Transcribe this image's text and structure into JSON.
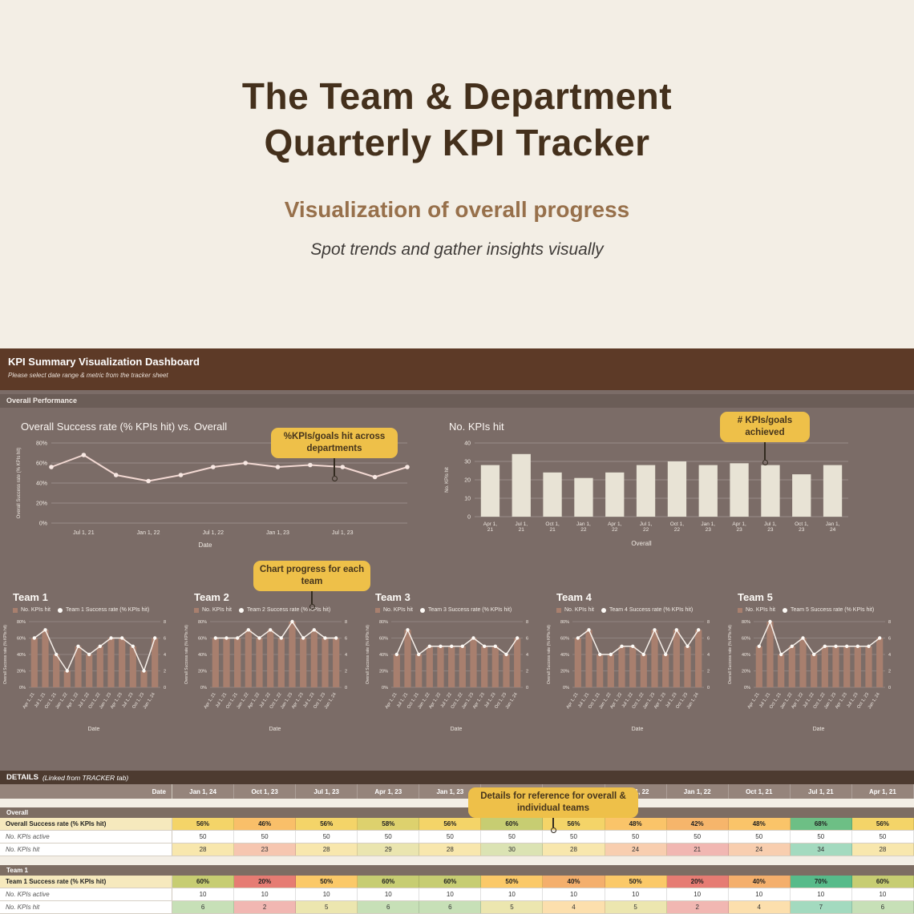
{
  "hero": {
    "title_line1": "The Team & Department",
    "title_line2": "Quarterly KPI Tracker",
    "subtitle": "Visualization of overall progress",
    "tagline": "Spot trends and gather insights visually"
  },
  "dashboard": {
    "title": "KPI Summary Visualization Dashboard",
    "subtitle": "Please select date range & metric from the tracker sheet",
    "section_label": "Overall Performance"
  },
  "callouts": {
    "departments": "%KPIs/goals hit across departments",
    "achieved": "# KPIs/goals achieved",
    "team_progress": "Chart progress for each team",
    "details": "Details for reference for overall & individual teams"
  },
  "colors": {
    "hero_bg": "#f3eee5",
    "title_brown": "#44301c",
    "subtitle_brown": "#97704b",
    "dash_bg": "#7b6c67",
    "dash_header_bg": "#5d3a27",
    "callout_yellow": "#eec049",
    "line_color": "#f3d9d3",
    "bar_fill": "#e8e3d5",
    "team_bar_fill": "#a87f6e",
    "team_line": "#f6efe9",
    "scale_min": "#e67c73",
    "scale_mid": "#ffd666",
    "scale_max": "#57bb8a"
  },
  "chart_data": [
    {
      "type": "line",
      "title": "Overall Success rate (% KPIs hit) vs. Overall",
      "xlabel": "Date",
      "ylabel": "Overall Success rate (% KPIs hit)",
      "x": [
        "Apr 1, 21",
        "Jul 1, 21",
        "Oct 1, 21",
        "Jan 1, 22",
        "Apr 1, 22",
        "Jul 1, 22",
        "Oct 1, 22",
        "Jan 1, 23",
        "Apr 1, 23",
        "Jul 1, 23",
        "Oct 1, 23",
        "Jan 1, 24"
      ],
      "shown_x_ticks": [
        "Jul 1, 21",
        "Jan 1, 22",
        "Jul 1, 22",
        "Jan 1, 23",
        "Jul 1, 23"
      ],
      "values": [
        56,
        68,
        48,
        42,
        48,
        56,
        60,
        56,
        58,
        56,
        46,
        56
      ],
      "ylim": [
        0,
        80
      ],
      "yticks": [
        "0%",
        "20%",
        "40%",
        "60%",
        "80%"
      ],
      "grid": true,
      "legend_position": "none"
    },
    {
      "type": "bar",
      "title": "No. KPIs hit",
      "xlabel": "Overall",
      "ylabel": "No. KPIs hit",
      "categories": [
        "Apr 1, 21",
        "Jul 1, 21",
        "Oct 1, 21",
        "Jan 1, 22",
        "Apr 1, 22",
        "Jul 1, 22",
        "Oct 1, 22",
        "Jan 1, 23",
        "Apr 1, 23",
        "Jul 1, 23",
        "Oct 1, 23",
        "Jan 1, 24"
      ],
      "values": [
        28,
        34,
        24,
        21,
        24,
        28,
        30,
        28,
        29,
        28,
        23,
        28
      ],
      "ylim": [
        0,
        40
      ],
      "yticks": [
        0,
        10,
        20,
        30,
        40
      ],
      "grid": true
    },
    {
      "type": "combo",
      "title": "Team 1",
      "legend": [
        "No. KPIs hit",
        "Team 1 Success rate (% KPIs hit)"
      ],
      "xlabel": "Date",
      "ylabel": "Overall Success rate (% KPIs hit)",
      "categories": [
        "Apr 1, 21",
        "Jul 1, 21",
        "Oct 1, 21",
        "Jan 1, 22",
        "Apr 1, 22",
        "Jul 1, 22",
        "Oct 1, 22",
        "Jan 1, 23",
        "Apr 1, 23",
        "Jul 1, 23",
        "Oct 1, 23",
        "Jan 1, 24"
      ],
      "bars": [
        6,
        7,
        4,
        2,
        5,
        4,
        5,
        6,
        6,
        5,
        2,
        6
      ],
      "line_pct": [
        60,
        70,
        40,
        20,
        50,
        40,
        50,
        60,
        60,
        50,
        20,
        60
      ],
      "ylim_left": [
        0,
        80
      ],
      "ylim_right": [
        0,
        8
      ]
    },
    {
      "type": "combo",
      "title": "Team 2",
      "legend": [
        "No. KPIs hit",
        "Team 2 Success rate (% KPIs hit)"
      ],
      "xlabel": "Date",
      "ylabel": "Overall Success rate (% KPIs hit)",
      "categories": [
        "Apr 1, 21",
        "Jul 1, 21",
        "Oct 1, 21",
        "Jan 1, 22",
        "Apr 1, 22",
        "Jul 1, 22",
        "Oct 1, 22",
        "Jan 1, 23",
        "Apr 1, 23",
        "Jul 1, 23",
        "Oct 1, 23",
        "Jan 1, 24"
      ],
      "bars": [
        6,
        6,
        6,
        7,
        6,
        7,
        6,
        8,
        6,
        7,
        6,
        6
      ],
      "line_pct": [
        60,
        60,
        60,
        70,
        60,
        70,
        60,
        80,
        60,
        70,
        60,
        60
      ],
      "ylim_left": [
        0,
        80
      ],
      "ylim_right": [
        0,
        8
      ]
    },
    {
      "type": "combo",
      "title": "Team 3",
      "legend": [
        "No. KPIs hit",
        "Team 3 Success rate (% KPIs hit)"
      ],
      "xlabel": "Date",
      "ylabel": "Overall Success rate (% KPIs hit)",
      "categories": [
        "Apr 1, 21",
        "Jul 1, 21",
        "Oct 1, 21",
        "Jan 1, 22",
        "Apr 1, 22",
        "Jul 1, 22",
        "Oct 1, 22",
        "Jan 1, 23",
        "Apr 1, 23",
        "Jul 1, 23",
        "Oct 1, 23",
        "Jan 1, 24"
      ],
      "bars": [
        4,
        7,
        4,
        5,
        5,
        5,
        5,
        6,
        5,
        5,
        4,
        6
      ],
      "line_pct": [
        40,
        70,
        40,
        50,
        50,
        50,
        50,
        60,
        50,
        50,
        40,
        60
      ],
      "ylim_left": [
        0,
        80
      ],
      "ylim_right": [
        0,
        8
      ]
    },
    {
      "type": "combo",
      "title": "Team 4",
      "legend": [
        "No. KPIs hit",
        "Team 4 Success rate (% KPIs hit)"
      ],
      "xlabel": "Date",
      "ylabel": "Overall Success rate (% KPIs hit)",
      "categories": [
        "Apr 1, 21",
        "Jul 1, 21",
        "Oct 1, 21",
        "Jan 1, 22",
        "Apr 1, 22",
        "Jul 1, 22",
        "Oct 1, 22",
        "Jan 1, 23",
        "Apr 1, 23",
        "Jul 1, 23",
        "Oct 1, 23",
        "Jan 1, 24"
      ],
      "bars": [
        6,
        7,
        4,
        4,
        5,
        5,
        4,
        7,
        4,
        7,
        5,
        7
      ],
      "line_pct": [
        60,
        70,
        40,
        40,
        50,
        50,
        40,
        70,
        40,
        70,
        50,
        70
      ],
      "ylim_left": [
        0,
        80
      ],
      "ylim_right": [
        0,
        8
      ]
    },
    {
      "type": "combo",
      "title": "Team 5",
      "legend": [
        "No. KPIs hit",
        "Team 5 Success rate (% KPIs hit)"
      ],
      "xlabel": "Date",
      "ylabel": "Overall Success rate (% KPIs hit)",
      "categories": [
        "Apr 1, 21",
        "Jul 1, 21",
        "Oct 1, 21",
        "Jan 1, 22",
        "Apr 1, 22",
        "Jul 1, 22",
        "Oct 1, 22",
        "Jan 1, 23",
        "Apr 1, 23",
        "Jul 1, 23",
        "Oct 1, 23",
        "Jan 1, 24"
      ],
      "bars": [
        5,
        8,
        4,
        5,
        6,
        4,
        5,
        5,
        5,
        5,
        5,
        6
      ],
      "line_pct": [
        50,
        80,
        40,
        50,
        60,
        40,
        50,
        50,
        50,
        50,
        50,
        60
      ],
      "ylim_left": [
        0,
        80
      ],
      "ylim_right": [
        0,
        8
      ]
    }
  ],
  "details": {
    "title": "DETAILS",
    "title_suffix": "(Linked from TRACKER tab)",
    "date_label": "Date",
    "dates": [
      "Jan 1, 24",
      "Oct 1, 23",
      "Jul 1, 23",
      "Apr 1, 23",
      "Jan 1, 23",
      "Oct 1, 22",
      "Jul 1, 22",
      "Apr 1, 22",
      "Jan 1, 22",
      "Oct 1, 21",
      "Jul 1, 21",
      "Apr 1, 21"
    ],
    "sections": [
      {
        "label": "Overall",
        "rows": [
          {
            "label": "Overall Success rate (% KPIs hit)",
            "scale": "rate",
            "values": [
              "56%",
              "46%",
              "56%",
              "58%",
              "56%",
              "60%",
              "56%",
              "48%",
              "42%",
              "48%",
              "68%",
              "56%"
            ]
          },
          {
            "label": "No. KPIs active",
            "scale": "plain",
            "values": [
              50,
              50,
              50,
              50,
              50,
              50,
              50,
              50,
              50,
              50,
              50,
              50
            ]
          },
          {
            "label": "No. KPIs hit",
            "scale": "tint",
            "values": [
              28,
              23,
              28,
              29,
              28,
              30,
              28,
              24,
              21,
              24,
              34,
              28
            ]
          }
        ]
      },
      {
        "label": "Team 1",
        "rows": [
          {
            "label": "Team 1 Success rate (% KPIs hit)",
            "scale": "rate",
            "values": [
              "60%",
              "20%",
              "50%",
              "60%",
              "60%",
              "50%",
              "40%",
              "50%",
              "20%",
              "40%",
              "70%",
              "60%"
            ]
          },
          {
            "label": "No. KPIs active",
            "scale": "plain",
            "values": [
              10,
              10,
              10,
              10,
              10,
              10,
              10,
              10,
              10,
              10,
              10,
              10
            ]
          },
          {
            "label": "No. KPIs hit",
            "scale": "tint",
            "values": [
              6,
              2,
              5,
              6,
              6,
              5,
              4,
              5,
              2,
              4,
              7,
              6
            ]
          }
        ]
      }
    ]
  }
}
